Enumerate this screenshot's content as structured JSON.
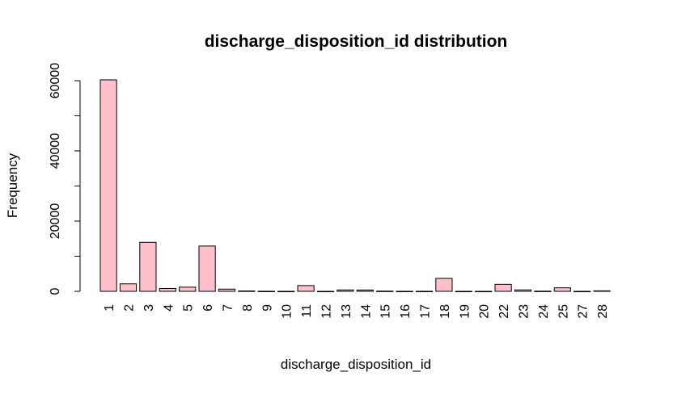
{
  "chart_data": {
    "type": "bar",
    "title": "discharge_disposition_id distribution",
    "xlabel": "discharge_disposition_id",
    "ylabel": "Frequency",
    "categories": [
      "1",
      "2",
      "3",
      "4",
      "5",
      "6",
      "7",
      "8",
      "9",
      "10",
      "11",
      "12",
      "13",
      "14",
      "15",
      "16",
      "17",
      "18",
      "19",
      "20",
      "22",
      "23",
      "24",
      "25",
      "27",
      "28"
    ],
    "values": [
      60234,
      2128,
      13954,
      815,
      1184,
      12902,
      623,
      108,
      21,
      6,
      1642,
      3,
      398,
      372,
      63,
      11,
      14,
      3691,
      8,
      2,
      1993,
      412,
      48,
      989,
      5,
      139
    ],
    "yticks": [
      0,
      20000,
      40000,
      60000
    ],
    "ylim": [
      0,
      60234
    ],
    "bar_color": "#FFC0CB",
    "grid": false,
    "legend": "none"
  }
}
